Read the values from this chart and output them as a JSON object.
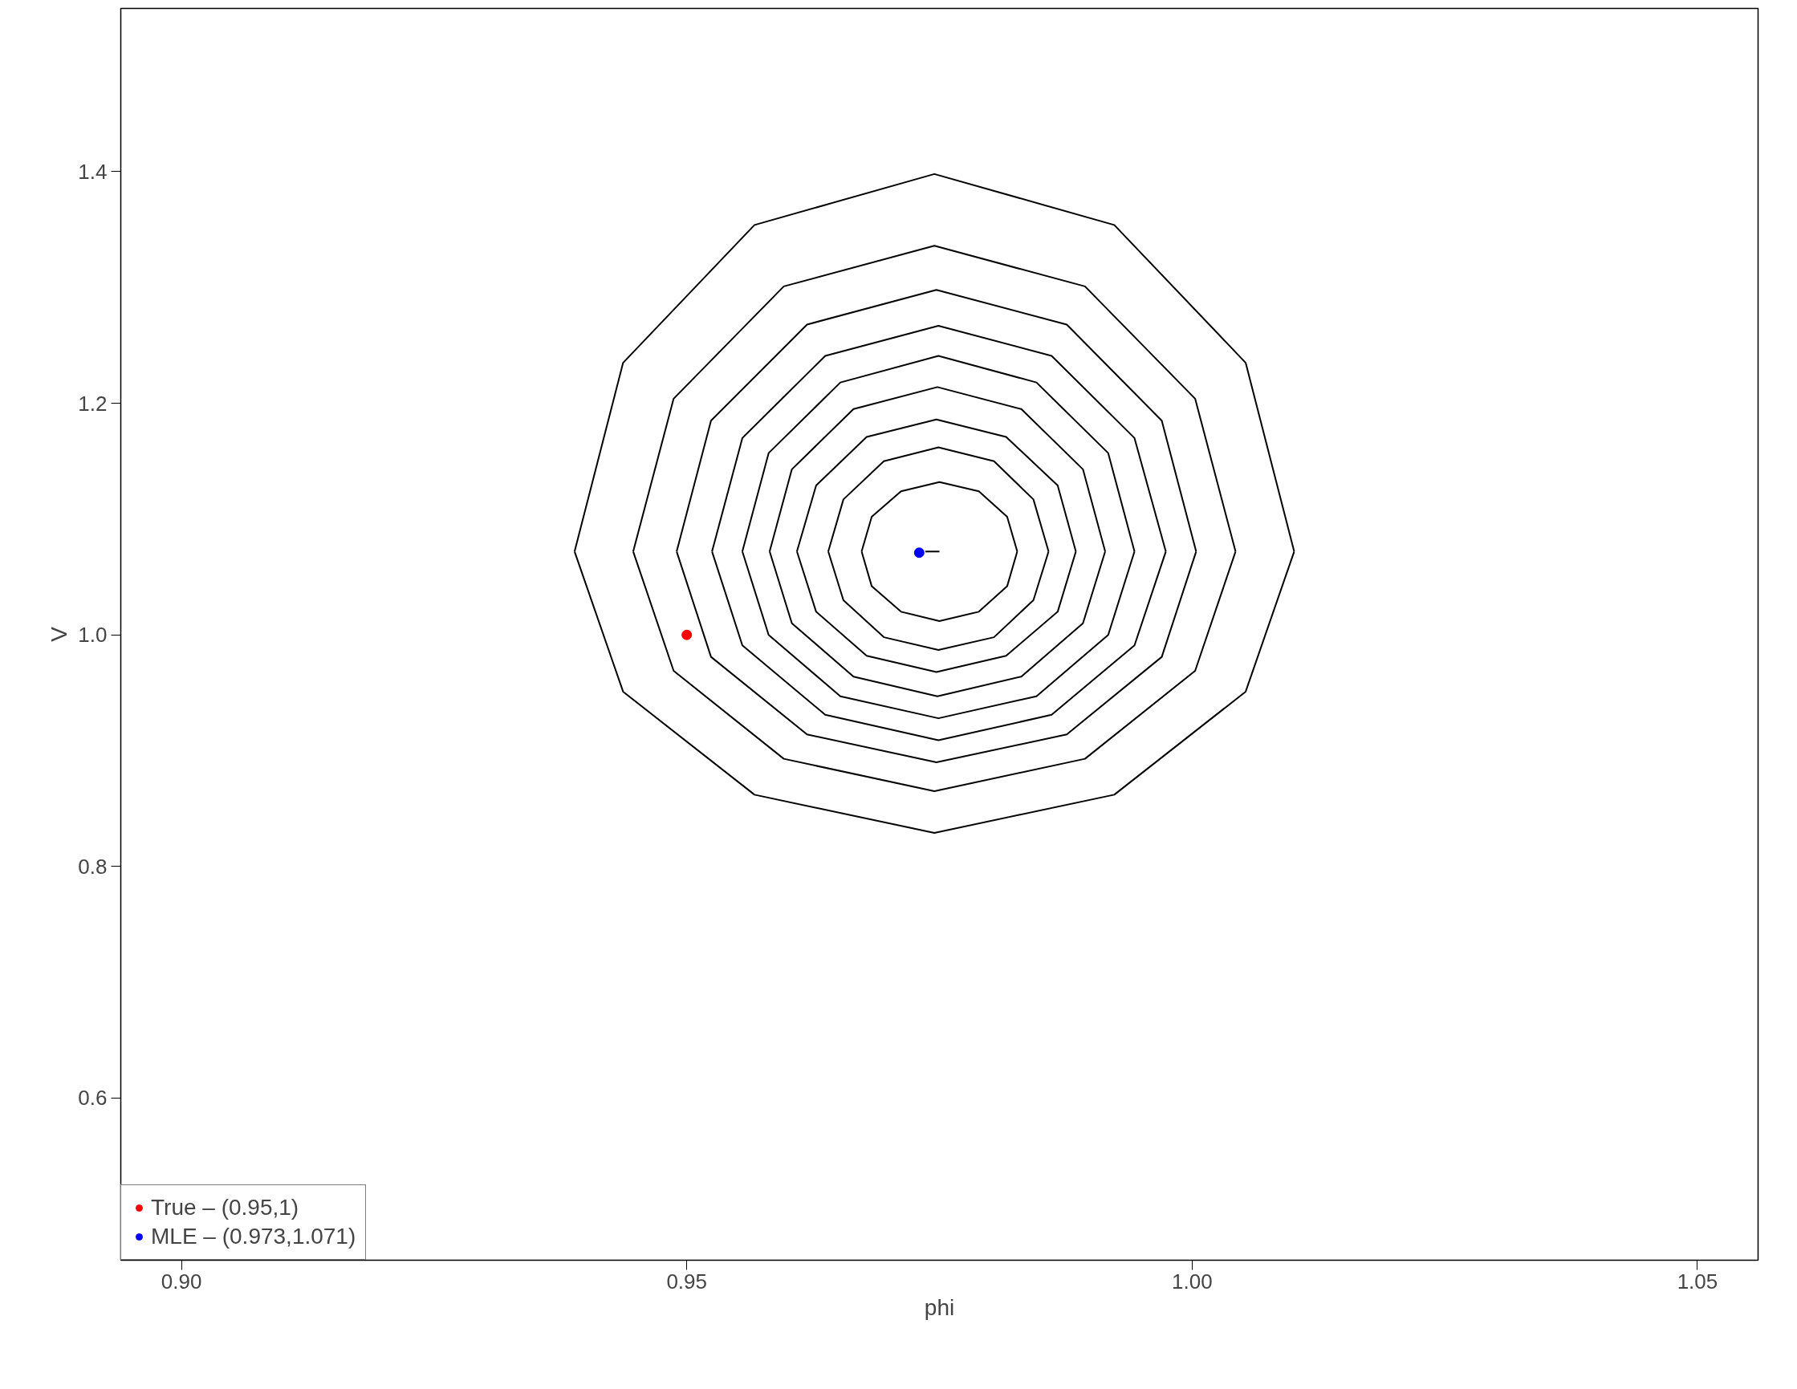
{
  "chart_data": {
    "type": "line",
    "xlabel": "phi",
    "ylabel": "V",
    "xlim": [
      0.894,
      1.056
    ],
    "ylim": [
      0.46,
      1.541
    ],
    "xticks": [
      {
        "value": 0.9,
        "label": "0.90"
      },
      0.95,
      {
        "value": 1.0,
        "label": "1.00"
      },
      1.05
    ],
    "yticks": [
      0.6,
      0.8,
      {
        "value": 1.0,
        "label": "1.0"
      },
      1.2,
      1.4
    ],
    "grid": false,
    "legend": "bottom left",
    "line_style": "solid",
    "series": [
      {
        "color": "#000000",
        "x": [
          0.9389,
          0.9437,
          0.9567,
          0.9745,
          0.9923,
          1.0053,
          1.0101
        ],
        "values": [
          1.072,
          1.235,
          1.354,
          1.398,
          1.354,
          1.235,
          1.072
        ]
      },
      {
        "color": "#000000",
        "x": [
          0.9389,
          0.9437,
          0.9567,
          0.9745,
          0.9923,
          1.0053,
          1.0101
        ],
        "values": [
          1.072,
          0.951,
          0.862,
          0.829,
          0.862,
          0.951,
          1.072
        ]
      },
      {
        "color": "#000000",
        "x": [
          0.9447,
          0.9487,
          0.9596,
          0.9745,
          0.9894,
          1.0003,
          1.0043
        ],
        "values": [
          1.072,
          1.204,
          1.301,
          1.336,
          1.301,
          1.204,
          1.072
        ]
      },
      {
        "color": "#000000",
        "x": [
          0.9447,
          0.9487,
          0.9596,
          0.9745,
          0.9894,
          1.0003,
          1.0043
        ],
        "values": [
          1.072,
          0.969,
          0.893,
          0.865,
          0.893,
          0.969,
          1.072
        ]
      },
      {
        "color": "#000000",
        "x": [
          0.949,
          0.9524,
          0.9619,
          0.9747,
          0.9876,
          0.997,
          1.0004
        ],
        "values": [
          1.072,
          1.185,
          1.268,
          1.298,
          1.268,
          1.185,
          1.072
        ]
      },
      {
        "color": "#000000",
        "x": [
          0.949,
          0.9524,
          0.9619,
          0.9747,
          0.9876,
          0.997,
          1.0004
        ],
        "values": [
          1.072,
          0.981,
          0.914,
          0.89,
          0.914,
          0.981,
          1.072
        ]
      },
      {
        "color": "#000000",
        "x": [
          0.9525,
          0.9555,
          0.9637,
          0.9749,
          0.9861,
          0.9943,
          0.9974
        ],
        "values": [
          1.072,
          1.17,
          1.241,
          1.267,
          1.241,
          1.17,
          1.072
        ]
      },
      {
        "color": "#000000",
        "x": [
          0.9525,
          0.9555,
          0.9637,
          0.9749,
          0.9861,
          0.9943,
          0.9974
        ],
        "values": [
          1.072,
          0.991,
          0.931,
          0.909,
          0.931,
          0.991,
          1.072
        ]
      },
      {
        "color": "#000000",
        "x": [
          0.9555,
          0.9581,
          0.9652,
          0.9749,
          0.9846,
          0.9917,
          0.9943
        ],
        "values": [
          1.072,
          1.157,
          1.218,
          1.241,
          1.218,
          1.157,
          1.072
        ]
      },
      {
        "color": "#000000",
        "x": [
          0.9555,
          0.9581,
          0.9652,
          0.9749,
          0.9846,
          0.9917,
          0.9943
        ],
        "values": [
          1.072,
          1.0,
          0.947,
          0.928,
          0.947,
          1.0,
          1.072
        ]
      },
      {
        "color": "#000000",
        "x": [
          0.9582,
          0.9604,
          0.9665,
          0.9748,
          0.9831,
          0.9892,
          0.9914
        ],
        "values": [
          1.072,
          1.143,
          1.195,
          1.214,
          1.195,
          1.143,
          1.072
        ]
      },
      {
        "color": "#000000",
        "x": [
          0.9582,
          0.9604,
          0.9665,
          0.9748,
          0.9831,
          0.9892,
          0.9914
        ],
        "values": [
          1.072,
          1.01,
          0.964,
          0.947,
          0.964,
          1.01,
          1.072
        ]
      },
      {
        "color": "#000000",
        "x": [
          0.9609,
          0.9628,
          0.9678,
          0.9747,
          0.9816,
          0.9867,
          0.9885
        ],
        "values": [
          1.072,
          1.129,
          1.171,
          1.186,
          1.171,
          1.129,
          1.072
        ]
      },
      {
        "color": "#000000",
        "x": [
          0.9609,
          0.9628,
          0.9678,
          0.9747,
          0.9816,
          0.9867,
          0.9885
        ],
        "values": [
          1.072,
          1.02,
          0.982,
          0.968,
          0.982,
          1.02,
          1.072
        ]
      },
      {
        "color": "#000000",
        "x": [
          0.964,
          0.9655,
          0.9695,
          0.9749,
          0.9804,
          0.9843,
          0.9858
        ],
        "values": [
          1.072,
          1.117,
          1.15,
          1.162,
          1.15,
          1.117,
          1.072
        ]
      },
      {
        "color": "#000000",
        "x": [
          0.964,
          0.9655,
          0.9695,
          0.9749,
          0.9804,
          0.9843,
          0.9858
        ],
        "values": [
          1.072,
          1.03,
          0.998,
          0.987,
          0.998,
          1.03,
          1.072
        ]
      },
      {
        "color": "#000000",
        "x": [
          0.9673,
          0.9683,
          0.9712,
          0.975,
          0.9789,
          0.9817,
          0.9827
        ],
        "values": [
          1.072,
          1.102,
          1.124,
          1.132,
          1.124,
          1.102,
          1.072
        ]
      },
      {
        "color": "#000000",
        "x": [
          0.9673,
          0.9683,
          0.9712,
          0.975,
          0.9789,
          0.9817,
          0.9827
        ],
        "values": [
          1.072,
          1.042,
          1.02,
          1.012,
          1.02,
          1.042,
          1.072
        ]
      },
      {
        "color": "#000000",
        "x": [
          0.9736,
          0.975
        ],
        "values": [
          1.072,
          1.072
        ]
      },
      {
        "type": "scatter",
        "name": "True – (0.95,1)",
        "color": "#ff0000",
        "marker": "circle",
        "x": [
          0.95
        ],
        "values": [
          1.0
        ]
      },
      {
        "type": "scatter",
        "name": "MLE – (0.973,1.071)",
        "color": "#0000ff",
        "marker": "circle",
        "x": [
          0.973
        ],
        "values": [
          1.071
        ]
      }
    ]
  }
}
